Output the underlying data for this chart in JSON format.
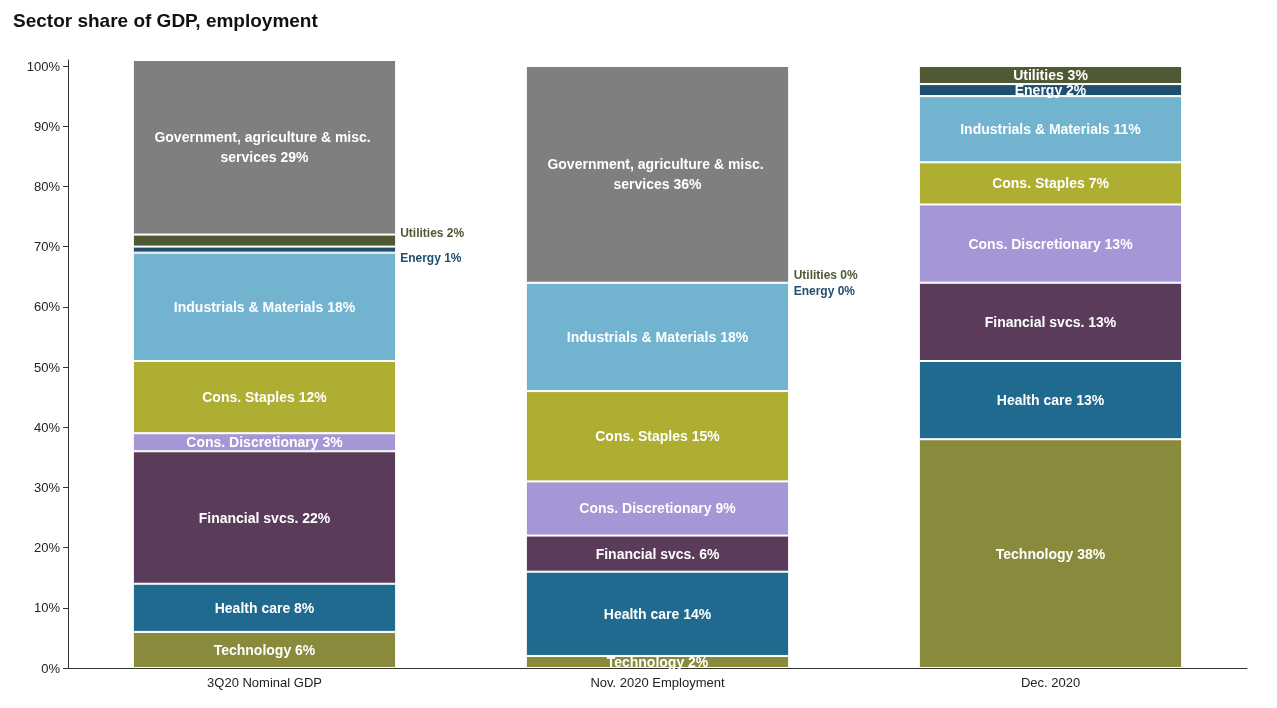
{
  "chart_data": {
    "type": "bar",
    "stacked": true,
    "title": "Sector share of GDP, employment",
    "categories": [
      "3Q20 Nominal GDP",
      "Nov. 2020 Employment",
      "Dec. 2020"
    ],
    "ylim": [
      0,
      101
    ],
    "yticks": [
      {
        "value": 0,
        "label": "0%"
      },
      {
        "value": 10,
        "label": "10%"
      },
      {
        "value": 20,
        "label": "20%"
      },
      {
        "value": 30,
        "label": "30%"
      },
      {
        "value": 40,
        "label": "40%"
      },
      {
        "value": 50,
        "label": "50%"
      },
      {
        "value": 60,
        "label": "60%"
      },
      {
        "value": 70,
        "label": "70%"
      },
      {
        "value": 80,
        "label": "80%"
      },
      {
        "value": 90,
        "label": "90%"
      },
      {
        "value": 100,
        "label": "100%"
      }
    ],
    "grid": false,
    "legend": false,
    "series": [
      {
        "name": "Technology",
        "color": "#8a8a3c",
        "values": [
          6,
          2,
          38
        ],
        "value_labels": [
          "6%",
          "2%",
          "38%"
        ]
      },
      {
        "name": "Health care",
        "color": "#1f6a8e",
        "values": [
          8,
          14,
          13
        ],
        "value_labels": [
          "8%",
          "14%",
          "13%"
        ]
      },
      {
        "name": "Financial svcs.",
        "color": "#5a3b5a",
        "values": [
          22,
          6,
          13
        ],
        "value_labels": [
          "22%",
          "6%",
          "13%"
        ]
      },
      {
        "name": "Cons. Discretionary",
        "color": "#a597d6",
        "values": [
          3,
          9,
          13
        ],
        "value_labels": [
          "3%",
          "9%",
          "13%"
        ]
      },
      {
        "name": "Cons. Staples",
        "color": "#adae32",
        "values": [
          12,
          15,
          7
        ],
        "value_labels": [
          "12%",
          "15%",
          "7%"
        ]
      },
      {
        "name": "Industrials & Materials",
        "color": "#72b4cf",
        "values": [
          18,
          18,
          11
        ],
        "value_labels": [
          "18%",
          "18%",
          "11%"
        ]
      },
      {
        "name": "Energy",
        "color": "#1f4e6e",
        "values": [
          1,
          0,
          2
        ],
        "value_labels": [
          "1%",
          "0%",
          "2%"
        ]
      },
      {
        "name": "Utilities",
        "color": "#4f5a35",
        "values": [
          2,
          0,
          3
        ],
        "value_labels": [
          "2%",
          "0%",
          "3%"
        ]
      },
      {
        "name": "Government, agriculture & misc. services",
        "color": "#7f7f7f",
        "values": [
          29,
          36,
          null
        ],
        "value_labels": [
          "29%",
          "36%",
          null
        ]
      }
    ]
  }
}
